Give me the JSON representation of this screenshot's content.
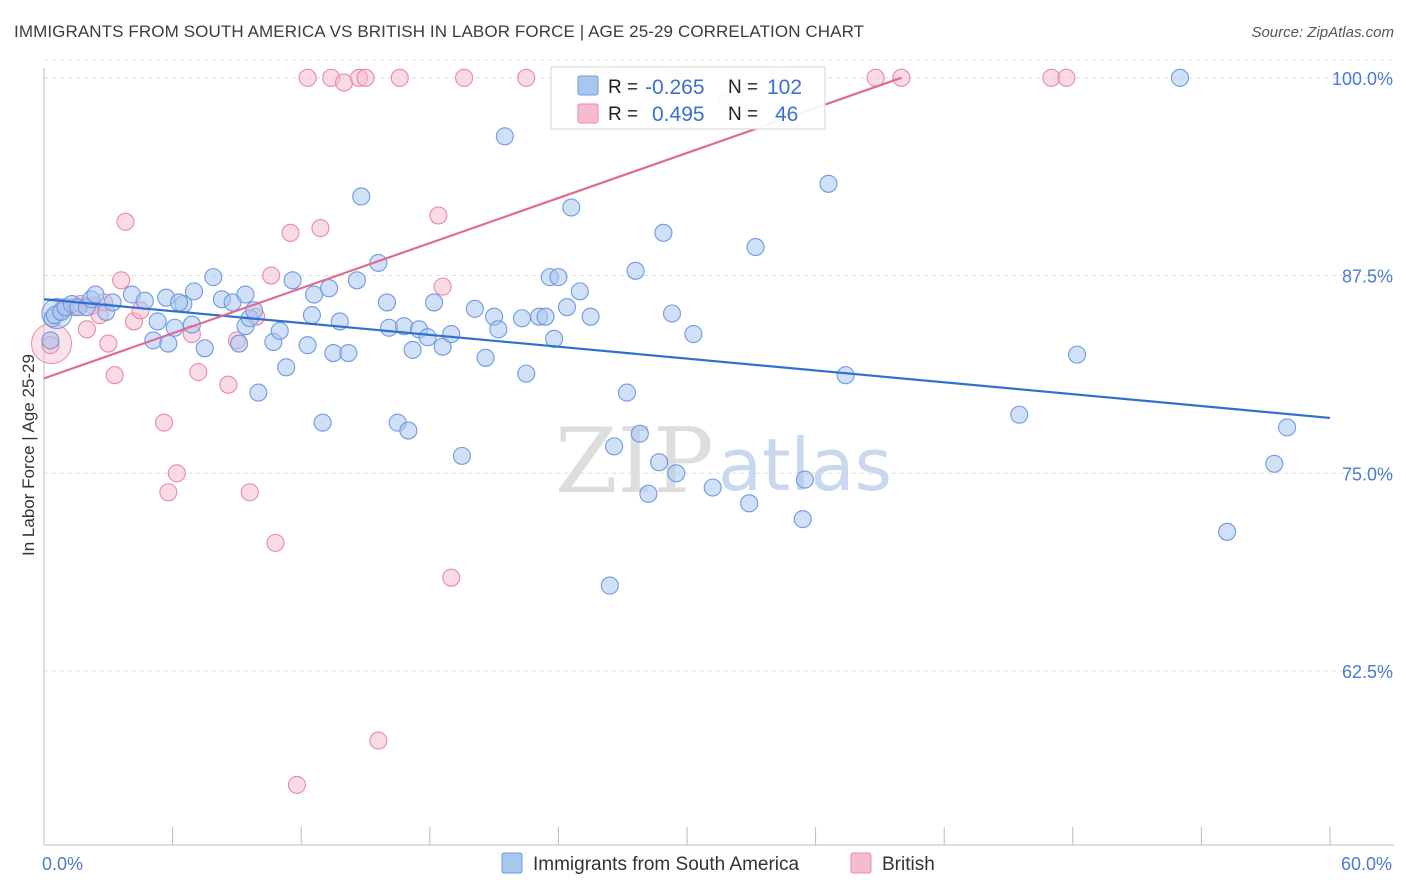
{
  "title": "IMMIGRANTS FROM SOUTH AMERICA VS BRITISH IN LABOR FORCE | AGE 25-29 CORRELATION CHART",
  "source": "Source: ZipAtlas.com",
  "watermark": {
    "zip": "ZIP",
    "atlas": "atlas"
  },
  "colors": {
    "blue_fill": "#a9c6ef",
    "blue_stroke": "#6f9ae0",
    "blue_line": "#2f6fd0",
    "pink_fill": "#f6bccd",
    "pink_stroke": "#e98aa6",
    "pink_line": "#e06a92",
    "tick_text": "#4a7bd0",
    "grid": "#dcdcdc"
  },
  "stats": [
    {
      "r_label": "R =",
      "r_value": "-0.265",
      "n_label": "N =",
      "n_value": "102"
    },
    {
      "r_label": "R =",
      "r_value": "0.495",
      "n_label": "N =",
      "n_value": "46"
    }
  ],
  "chart_data": {
    "type": "scatter",
    "ylabel": "In Labor Force | Age 25-29",
    "x_tick_labels": [
      "0.0%",
      "60.0%"
    ],
    "y_tick_labels": [
      "100.0%",
      "87.5%",
      "75.0%",
      "62.5%"
    ],
    "y_ticks": [
      100.0,
      87.5,
      75.0,
      62.5
    ],
    "xlim": [
      0,
      60
    ],
    "ylim": [
      51.5,
      101.0
    ],
    "grid": true,
    "legend_position": "bottom",
    "series": [
      {
        "name": "Immigrants from South America",
        "trend": {
          "x": [
            0,
            60
          ],
          "y": [
            86.0,
            78.5
          ]
        },
        "points": [
          [
            0.3,
            83.4
          ],
          [
            0.4,
            84.8
          ],
          [
            0.5,
            85.0
          ],
          [
            0.8,
            85.2
          ],
          [
            1.0,
            85.5
          ],
          [
            1.3,
            85.7
          ],
          [
            1.6,
            85.5
          ],
          [
            2.0,
            85.5
          ],
          [
            2.2,
            86.0
          ],
          [
            2.4,
            86.3
          ],
          [
            2.9,
            85.2
          ],
          [
            3.2,
            85.8
          ],
          [
            4.1,
            86.3
          ],
          [
            4.7,
            85.9
          ],
          [
            5.1,
            83.4
          ],
          [
            5.3,
            84.6
          ],
          [
            5.7,
            86.1
          ],
          [
            5.8,
            83.2
          ],
          [
            6.1,
            84.2
          ],
          [
            6.5,
            85.7
          ],
          [
            6.3,
            85.8
          ],
          [
            6.9,
            84.4
          ],
          [
            7.0,
            86.5
          ],
          [
            7.5,
            82.9
          ],
          [
            7.9,
            87.4
          ],
          [
            8.3,
            86.0
          ],
          [
            8.8,
            85.8
          ],
          [
            9.1,
            83.2
          ],
          [
            9.4,
            84.3
          ],
          [
            9.6,
            84.8
          ],
          [
            9.4,
            86.3
          ],
          [
            9.8,
            85.3
          ],
          [
            10.0,
            80.1
          ],
          [
            10.7,
            83.3
          ],
          [
            11.0,
            84.0
          ],
          [
            11.3,
            81.7
          ],
          [
            11.6,
            87.2
          ],
          [
            12.3,
            83.1
          ],
          [
            12.5,
            85.0
          ],
          [
            12.6,
            86.3
          ],
          [
            13.0,
            78.2
          ],
          [
            13.3,
            86.7
          ],
          [
            13.5,
            82.6
          ],
          [
            13.8,
            84.6
          ],
          [
            14.2,
            82.6
          ],
          [
            14.6,
            87.2
          ],
          [
            14.8,
            92.5
          ],
          [
            15.6,
            88.3
          ],
          [
            16.0,
            85.8
          ],
          [
            16.1,
            84.2
          ],
          [
            16.5,
            78.2
          ],
          [
            16.8,
            84.3
          ],
          [
            17.0,
            77.7
          ],
          [
            17.2,
            82.8
          ],
          [
            17.5,
            84.1
          ],
          [
            17.9,
            83.6
          ],
          [
            18.2,
            85.8
          ],
          [
            18.6,
            83.0
          ],
          [
            19.0,
            83.8
          ],
          [
            19.5,
            76.1
          ],
          [
            20.1,
            85.4
          ],
          [
            20.6,
            82.3
          ],
          [
            21.0,
            84.9
          ],
          [
            21.2,
            84.1
          ],
          [
            21.5,
            96.3
          ],
          [
            22.3,
            84.8
          ],
          [
            22.5,
            81.3
          ],
          [
            23.1,
            84.9
          ],
          [
            23.4,
            84.9
          ],
          [
            23.6,
            87.4
          ],
          [
            23.8,
            83.5
          ],
          [
            24.0,
            87.4
          ],
          [
            24.4,
            85.5
          ],
          [
            24.6,
            91.8
          ],
          [
            25.0,
            86.5
          ],
          [
            25.5,
            84.9
          ],
          [
            26.4,
            67.9
          ],
          [
            26.6,
            76.7
          ],
          [
            27.2,
            80.1
          ],
          [
            27.6,
            87.8
          ],
          [
            27.8,
            77.5
          ],
          [
            28.2,
            73.7
          ],
          [
            28.7,
            75.7
          ],
          [
            28.9,
            90.2
          ],
          [
            29.3,
            85.1
          ],
          [
            29.5,
            75.0
          ],
          [
            30.3,
            83.8
          ],
          [
            31.2,
            74.1
          ],
          [
            31.9,
            98.5
          ],
          [
            32.9,
            73.1
          ],
          [
            33.2,
            89.3
          ],
          [
            34.3,
            100.0
          ],
          [
            35.4,
            72.1
          ],
          [
            35.5,
            74.6
          ],
          [
            36.6,
            93.3
          ],
          [
            37.4,
            81.2
          ],
          [
            45.5,
            78.7
          ],
          [
            48.2,
            82.5
          ],
          [
            55.2,
            71.3
          ],
          [
            57.4,
            75.6
          ],
          [
            58.0,
            77.9
          ],
          [
            53.0,
            100.0
          ]
        ]
      },
      {
        "name": "British",
        "trend": {
          "x": [
            0,
            40
          ],
          "y": [
            81.0,
            100.0
          ]
        },
        "points": [
          [
            0.3,
            83.1
          ],
          [
            0.8,
            85.3
          ],
          [
            1.4,
            85.5
          ],
          [
            1.7,
            85.7
          ],
          [
            2.0,
            84.1
          ],
          [
            2.3,
            85.6
          ],
          [
            2.6,
            85.0
          ],
          [
            2.8,
            85.8
          ],
          [
            3.0,
            83.2
          ],
          [
            3.3,
            81.2
          ],
          [
            3.6,
            87.2
          ],
          [
            3.8,
            90.9
          ],
          [
            4.2,
            84.6
          ],
          [
            4.5,
            85.3
          ],
          [
            5.6,
            78.2
          ],
          [
            5.8,
            73.8
          ],
          [
            6.2,
            75.0
          ],
          [
            6.9,
            83.8
          ],
          [
            7.2,
            81.4
          ],
          [
            8.6,
            80.6
          ],
          [
            9.0,
            83.4
          ],
          [
            9.6,
            73.8
          ],
          [
            9.9,
            84.9
          ],
          [
            10.6,
            87.5
          ],
          [
            10.8,
            70.6
          ],
          [
            11.5,
            90.2
          ],
          [
            11.8,
            55.3
          ],
          [
            12.3,
            100.0
          ],
          [
            12.9,
            90.5
          ],
          [
            13.4,
            100.0
          ],
          [
            14.0,
            99.7
          ],
          [
            14.7,
            100.0
          ],
          [
            15.0,
            100.0
          ],
          [
            15.6,
            58.1
          ],
          [
            16.6,
            100.0
          ],
          [
            18.4,
            91.3
          ],
          [
            18.6,
            86.8
          ],
          [
            19.0,
            68.4
          ],
          [
            19.6,
            100.0
          ],
          [
            22.5,
            100.0
          ],
          [
            26.1,
            100.0
          ],
          [
            29.4,
            100.0
          ],
          [
            38.8,
            100.0
          ],
          [
            40.0,
            100.0
          ],
          [
            47.0,
            100.0
          ],
          [
            47.7,
            100.0
          ]
        ]
      }
    ]
  }
}
